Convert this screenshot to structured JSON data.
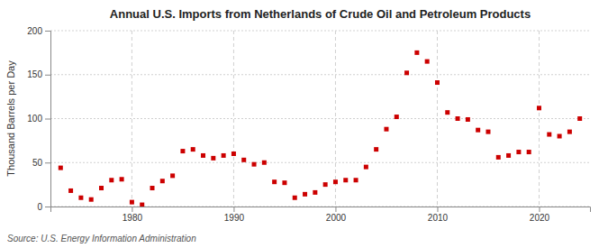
{
  "chart_data": {
    "type": "scatter",
    "title": "Annual U.S. Imports from Netherlands of Crude Oil and Petroleum Products",
    "ylabel": "Thousand Barrels per Day",
    "source": "Source: U.S. Energy Information Administration",
    "x": [
      1973,
      1974,
      1975,
      1976,
      1977,
      1978,
      1979,
      1980,
      1981,
      1982,
      1983,
      1984,
      1985,
      1986,
      1987,
      1988,
      1989,
      1990,
      1991,
      1992,
      1993,
      1994,
      1995,
      1996,
      1997,
      1998,
      1999,
      2000,
      2001,
      2002,
      2003,
      2004,
      2005,
      2006,
      2007,
      2008,
      2009,
      2010,
      2011,
      2012,
      2013,
      2014,
      2015,
      2016,
      2017,
      2018,
      2019,
      2020,
      2021,
      2022,
      2023,
      2024
    ],
    "values": [
      44,
      18,
      10,
      8,
      21,
      30,
      31,
      5,
      2,
      21,
      29,
      35,
      63,
      65,
      58,
      55,
      58,
      60,
      53,
      48,
      50,
      28,
      27,
      10,
      14,
      16,
      25,
      28,
      30,
      30,
      45,
      65,
      88,
      102,
      152,
      175,
      165,
      141,
      107,
      100,
      99,
      87,
      85,
      56,
      58,
      62,
      62,
      112,
      82,
      80,
      85,
      100
    ],
    "color": "#cc0000",
    "marker": "square",
    "xlim": [
      1972,
      2025
    ],
    "xticks": [
      1980,
      1990,
      2000,
      2010,
      2020
    ],
    "ylim": [
      0,
      200
    ],
    "yticks": [
      0,
      50,
      100,
      150,
      200
    ],
    "grid": true
  }
}
